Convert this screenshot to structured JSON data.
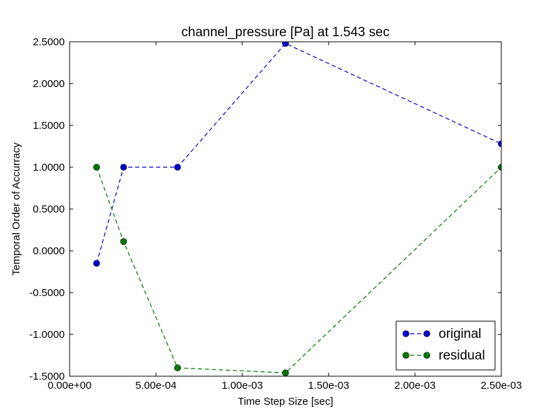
{
  "chart_data": {
    "type": "line",
    "title": "channel_pressure [Pa] at 1.543 sec",
    "xlabel": "Time Step Size [sec]",
    "ylabel": "Temporal Order of Accurracy",
    "xlim": [
      0.0,
      0.0025
    ],
    "ylim": [
      -1.5,
      2.5
    ],
    "x_ticks": [
      0.0,
      0.0005,
      0.001,
      0.0015,
      0.002,
      0.0025
    ],
    "x_tick_labels": [
      "0.00e+00",
      "5.00e-04",
      "1.00e-03",
      "1.50e-03",
      "2.00e-03",
      "2.50e-03"
    ],
    "y_ticks": [
      -1.5,
      -1.0,
      -0.5,
      0.0,
      0.5,
      1.0,
      1.5,
      2.0,
      2.5
    ],
    "y_tick_labels": [
      "-1.5000",
      "-1.0000",
      "-0.5000",
      "0.0000",
      "0.5000",
      "1.0000",
      "1.5000",
      "2.0000",
      "2.5000"
    ],
    "grid": false,
    "legend_position": "bottom-right",
    "series": [
      {
        "name": "original",
        "color": "#0000cc",
        "x": [
          0.00015625,
          0.0003125,
          0.000625,
          0.00125,
          0.0025
        ],
        "values": [
          -0.15,
          1.0,
          1.0,
          2.48,
          1.28
        ]
      },
      {
        "name": "residual",
        "color": "#007700",
        "x": [
          0.00015625,
          0.0003125,
          0.000625,
          0.00125,
          0.0025
        ],
        "values": [
          1.0,
          0.11,
          -1.4,
          -1.46,
          1.0
        ]
      }
    ]
  }
}
